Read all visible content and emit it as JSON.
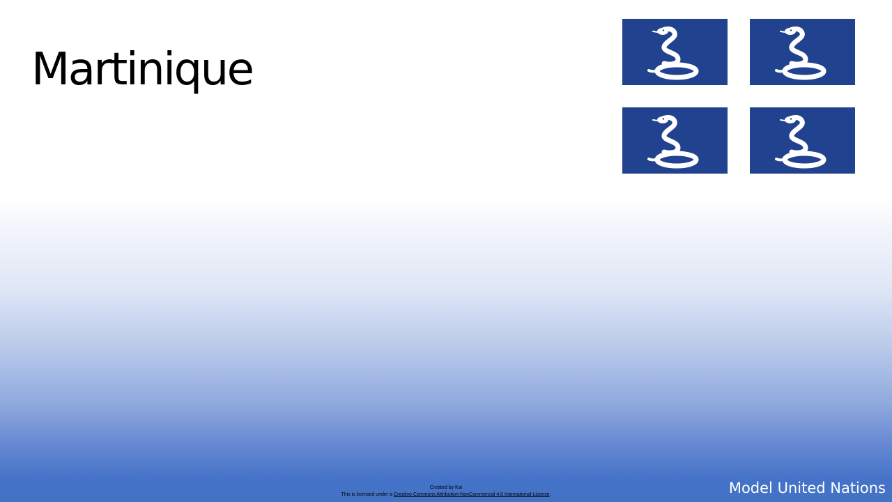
{
  "slide": {
    "title": "Martinique",
    "flags": [
      {
        "name": "flag-of-martinique"
      },
      {
        "name": "flag-of-martinique"
      },
      {
        "name": "flag-of-martinique"
      },
      {
        "name": "flag-of-martinique"
      }
    ],
    "credits": {
      "line1": "Created by Kai",
      "line2_prefix": "This is licensed under a ",
      "license_link": "Creative Commons Attribution-NonCommercial 4.0 International License",
      "line2_suffix": "."
    },
    "footer_brand": "Model United Nations"
  },
  "colors": {
    "flag_blue": "#21428f",
    "snake_white": "#ffffff",
    "gradient_bottom": "#4472c4",
    "text": "#000000"
  }
}
